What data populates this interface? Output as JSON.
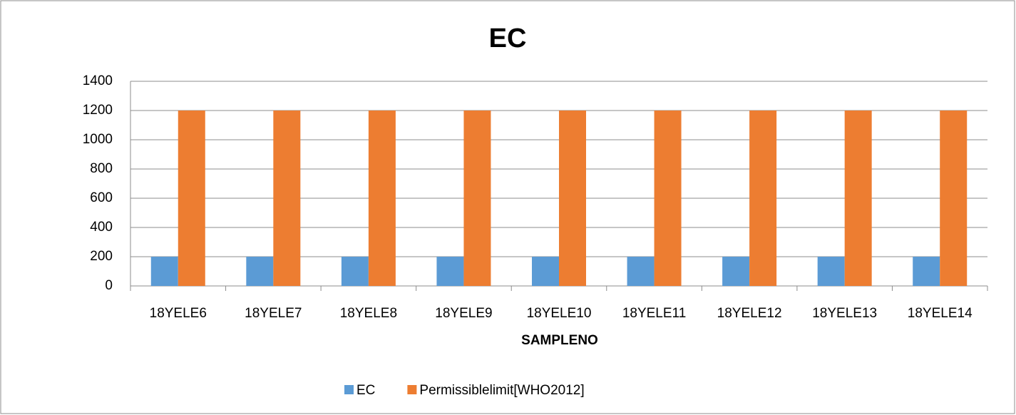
{
  "chart_data": {
    "type": "bar",
    "title": "EC",
    "xlabel": "SAMPLENO",
    "categories": [
      "18YELE6",
      "18YELE7",
      "18YELE8",
      "18YELE9",
      "18YELE10",
      "18YELE11",
      "18YELE12",
      "18YELE13",
      "18YELE14"
    ],
    "series": [
      {
        "name": "EC",
        "color": "#5b9bd5",
        "values": [
          200,
          200,
          200,
          200,
          200,
          200,
          200,
          200,
          200
        ]
      },
      {
        "name": "Permissiblelimit[WHO2012]",
        "color": "#ed7d31",
        "values": [
          1200,
          1200,
          1200,
          1200,
          1200,
          1200,
          1200,
          1200,
          1200
        ]
      }
    ],
    "ylim": [
      0,
      1400
    ],
    "yticks": [
      0,
      200,
      400,
      600,
      800,
      1000,
      1200,
      1400
    ],
    "grid": true,
    "legend": "bottom"
  }
}
